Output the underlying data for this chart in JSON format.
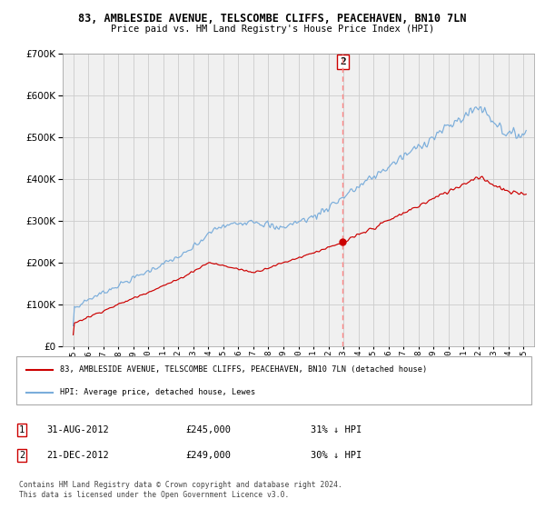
{
  "title": "83, AMBLESIDE AVENUE, TELSCOMBE CLIFFS, PEACEHAVEN, BN10 7LN",
  "subtitle": "Price paid vs. HM Land Registry's House Price Index (HPI)",
  "legend_label_red": "83, AMBLESIDE AVENUE, TELSCOMBE CLIFFS, PEACEHAVEN, BN10 7LN (detached house)",
  "legend_label_blue": "HPI: Average price, detached house, Lewes",
  "annotation1_date": "31-AUG-2012",
  "annotation1_price": "£245,000",
  "annotation1_hpi": "31% ↓ HPI",
  "annotation2_date": "21-DEC-2012",
  "annotation2_price": "£249,000",
  "annotation2_hpi": "30% ↓ HPI",
  "footer": "Contains HM Land Registry data © Crown copyright and database right 2024.\nThis data is licensed under the Open Government Licence v3.0.",
  "red_color": "#cc0000",
  "blue_color": "#7aaddb",
  "annotation_vline_color": "#ff8888",
  "grid_color": "#cccccc",
  "plot_bg_color": "#f0f0f0",
  "ylim": [
    0,
    700000
  ],
  "yticks": [
    0,
    100000,
    200000,
    300000,
    400000,
    500000,
    600000,
    700000
  ],
  "xstart": 1995,
  "xend": 2025,
  "marker2_year": 2012.96
}
